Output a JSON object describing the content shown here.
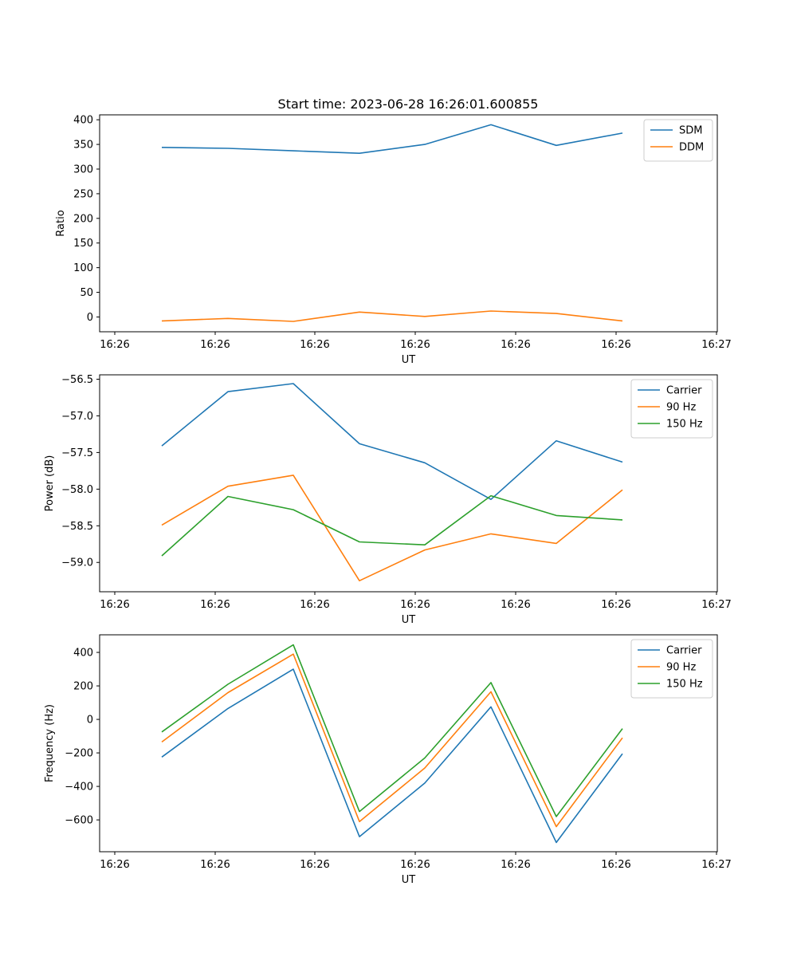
{
  "figure": {
    "title": "Start time: 2023-06-28 16:26:01.600855"
  },
  "chart_data": [
    {
      "type": "line",
      "title": "Start time: 2023-06-28 16:26:01.600855",
      "xlabel": "UT",
      "ylabel": "Ratio",
      "x_tick_labels": [
        "16:26",
        "16:26",
        "16:26",
        "16:26",
        "16:26",
        "16:26",
        "16:27"
      ],
      "ylim": [
        -30,
        410
      ],
      "yticks": [
        0,
        50,
        100,
        150,
        200,
        250,
        300,
        350,
        400
      ],
      "ytick_labels": [
        "0",
        "50",
        "100",
        "150",
        "200",
        "250",
        "300",
        "350",
        "400"
      ],
      "legend_position": "top-right",
      "grid": false,
      "series": [
        {
          "name": "SDM",
          "color": "#1f77b4",
          "values": [
            344,
            342,
            337,
            332,
            350,
            390,
            348,
            373
          ]
        },
        {
          "name": "DDM",
          "color": "#ff7f0e",
          "values": [
            -8,
            -3,
            -9,
            10,
            1,
            12,
            7,
            -8
          ]
        }
      ]
    },
    {
      "type": "line",
      "xlabel": "UT",
      "ylabel": "Power (dB)",
      "x_tick_labels": [
        "16:26",
        "16:26",
        "16:26",
        "16:26",
        "16:26",
        "16:26",
        "16:27"
      ],
      "ylim": [
        -59.4,
        -56.44
      ],
      "yticks": [
        -56.5,
        -57.0,
        -57.5,
        -58.0,
        -58.5,
        -59.0
      ],
      "ytick_labels": [
        "−56.5",
        "−57.0",
        "−57.5",
        "−58.0",
        "−58.5",
        "−59.0"
      ],
      "legend_position": "top-right",
      "grid": false,
      "series": [
        {
          "name": "Carrier",
          "color": "#1f77b4",
          "values": [
            -57.41,
            -56.67,
            -56.56,
            -57.38,
            -57.64,
            -58.14,
            -57.34,
            -57.63
          ]
        },
        {
          "name": "90 Hz",
          "color": "#ff7f0e",
          "values": [
            -58.49,
            -57.96,
            -57.81,
            -59.25,
            -58.83,
            -58.61,
            -58.74,
            -58.01
          ]
        },
        {
          "name": "150 Hz",
          "color": "#2ca02c",
          "values": [
            -58.91,
            -58.1,
            -58.28,
            -58.72,
            -58.76,
            -58.09,
            -58.36,
            -58.42
          ]
        }
      ]
    },
    {
      "type": "line",
      "xlabel": "UT",
      "ylabel": "Frequency (Hz)",
      "x_tick_labels": [
        "16:26",
        "16:26",
        "16:26",
        "16:26",
        "16:26",
        "16:26",
        "16:27"
      ],
      "ylim": [
        -790,
        505
      ],
      "yticks": [
        400,
        200,
        0,
        -200,
        -400,
        -600
      ],
      "ytick_labels": [
        "400",
        "200",
        "0",
        "−200",
        "−400",
        "−600"
      ],
      "legend_position": "top-right",
      "grid": false,
      "series": [
        {
          "name": "Carrier",
          "color": "#1f77b4",
          "values": [
            -225,
            65,
            300,
            -700,
            -380,
            75,
            -735,
            -205
          ]
        },
        {
          "name": "90 Hz",
          "color": "#ff7f0e",
          "values": [
            -135,
            160,
            390,
            -610,
            -290,
            165,
            -640,
            -110
          ]
        },
        {
          "name": "150 Hz",
          "color": "#2ca02c",
          "values": [
            -75,
            210,
            445,
            -550,
            -230,
            220,
            -580,
            -55
          ]
        }
      ]
    }
  ]
}
